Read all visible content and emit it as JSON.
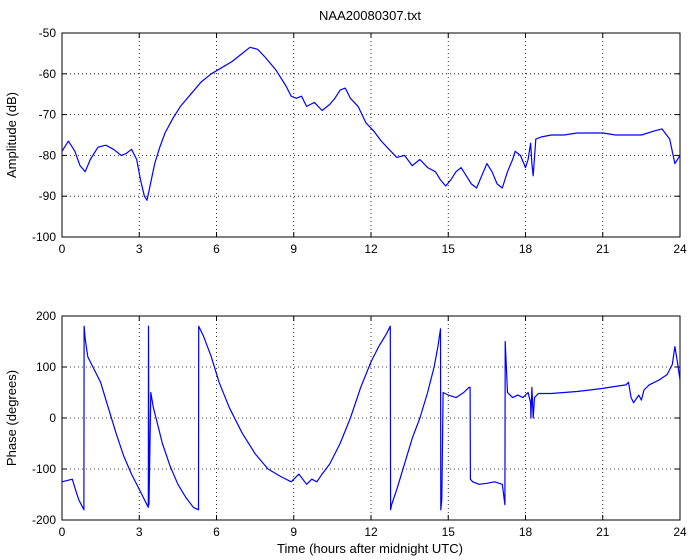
{
  "chart_data": [
    {
      "type": "line",
      "title": "NAA20080307.txt",
      "xlabel": "",
      "ylabel": "Amplitude (dB)",
      "xlim": [
        0,
        24
      ],
      "ylim": [
        -100,
        -50
      ],
      "xticks": [
        0,
        3,
        6,
        9,
        12,
        15,
        18,
        21,
        24
      ],
      "yticks": [
        -100,
        -90,
        -80,
        -70,
        -60,
        -50
      ],
      "grid": true,
      "series": [
        {
          "color": "#0000ff",
          "x": [
            0,
            0.25,
            0.5,
            0.7,
            0.9,
            1.1,
            1.4,
            1.7,
            2.0,
            2.3,
            2.5,
            2.7,
            2.9,
            3.05,
            3.2,
            3.3,
            3.4,
            3.6,
            3.8,
            4.0,
            4.3,
            4.6,
            5.0,
            5.4,
            5.8,
            6.2,
            6.6,
            7.0,
            7.3,
            7.6,
            7.9,
            8.3,
            8.7,
            8.9,
            9.1,
            9.3,
            9.5,
            9.8,
            10.1,
            10.4,
            10.6,
            10.8,
            11.0,
            11.2,
            11.5,
            11.8,
            12.1,
            12.4,
            12.7,
            13.0,
            13.3,
            13.6,
            13.9,
            14.2,
            14.5,
            14.7,
            14.9,
            15.1,
            15.3,
            15.5,
            15.7,
            15.9,
            16.1,
            16.3,
            16.5,
            16.7,
            16.9,
            17.1,
            17.3,
            17.5,
            17.6,
            17.7,
            17.8,
            18.0,
            18.1,
            18.2,
            18.25,
            18.3,
            18.4,
            18.6,
            19.0,
            19.5,
            20.0,
            20.5,
            21.0,
            21.5,
            22.0,
            22.5,
            23.0,
            23.3,
            23.6,
            23.8,
            24.0
          ],
          "y": [
            -79,
            -76.5,
            -79,
            -82.5,
            -84,
            -81,
            -78,
            -77.5,
            -78.5,
            -80,
            -79.5,
            -78.5,
            -81,
            -86,
            -90,
            -91,
            -88,
            -82,
            -78,
            -74.5,
            -71,
            -68,
            -65,
            -62,
            -60,
            -58.5,
            -57,
            -55,
            -53.5,
            -54,
            -56,
            -59,
            -63,
            -65.5,
            -66,
            -65.5,
            -68,
            -67,
            -69,
            -67.5,
            -66,
            -64,
            -63.5,
            -66,
            -68,
            -72,
            -74,
            -76.5,
            -78.5,
            -80.5,
            -80,
            -82.5,
            -81,
            -83,
            -84,
            -86,
            -87.5,
            -86,
            -84,
            -83,
            -85,
            -87,
            -88,
            -85,
            -82,
            -84,
            -87,
            -88,
            -84,
            -81,
            -79,
            -79.5,
            -80,
            -83,
            -81,
            -77,
            -82,
            -85,
            -76,
            -75.5,
            -75,
            -75,
            -74.5,
            -74.5,
            -74.5,
            -75,
            -75,
            -75,
            -74,
            -73.5,
            -76,
            -82,
            -80
          ]
        }
      ]
    },
    {
      "type": "line",
      "title": "",
      "xlabel": "Time (hours after midnight UTC)",
      "ylabel": "Phase (degrees)",
      "xlim": [
        0,
        24
      ],
      "ylim": [
        -200,
        200
      ],
      "xticks": [
        0,
        3,
        6,
        9,
        12,
        15,
        18,
        21,
        24
      ],
      "yticks": [
        -200,
        -100,
        0,
        100,
        200
      ],
      "grid": true,
      "series": [
        {
          "color": "#0000ff",
          "x": [
            0,
            0.4,
            0.55,
            0.65,
            0.75,
            0.85,
            0.86,
            0.9,
            1.0,
            1.2,
            1.5,
            1.8,
            2.1,
            2.4,
            2.7,
            3.0,
            3.2,
            3.35,
            3.36,
            3.38,
            3.45,
            3.55,
            3.7,
            3.9,
            4.2,
            4.5,
            4.8,
            5.1,
            5.3,
            5.31,
            5.5,
            5.8,
            6.1,
            6.5,
            7.0,
            7.5,
            8.0,
            8.5,
            8.9,
            9.2,
            9.5,
            9.7,
            9.9,
            10.1,
            10.4,
            10.8,
            11.2,
            11.6,
            12.0,
            12.3,
            12.6,
            12.75,
            12.76,
            12.8,
            13.0,
            13.3,
            13.6,
            13.9,
            14.2,
            14.45,
            14.6,
            14.7,
            14.71,
            14.75,
            14.8,
            15.0,
            15.3,
            15.6,
            15.8,
            15.85,
            15.86,
            15.95,
            16.2,
            16.5,
            16.8,
            17.1,
            17.2,
            17.21,
            17.3,
            17.5,
            17.7,
            17.9,
            18.1,
            18.2,
            18.21,
            18.25,
            18.3,
            18.35,
            18.5,
            19.0,
            19.5,
            20.0,
            20.5,
            21.0,
            21.5,
            21.9,
            22.0,
            22.1,
            22.2,
            22.4,
            22.5,
            22.6,
            22.8,
            23.2,
            23.5,
            23.7,
            23.8,
            23.9,
            24.0
          ],
          "y": [
            -125,
            -120,
            -145,
            -160,
            -170,
            -180,
            180,
            155,
            120,
            100,
            70,
            20,
            -30,
            -75,
            -110,
            -140,
            -160,
            -175,
            180,
            -170,
            50,
            20,
            -10,
            -50,
            -95,
            -130,
            -155,
            -175,
            -180,
            180,
            160,
            120,
            70,
            20,
            -30,
            -70,
            -100,
            -115,
            -125,
            -110,
            -130,
            -120,
            -125,
            -110,
            -90,
            -50,
            0,
            60,
            110,
            140,
            165,
            180,
            -180,
            -170,
            -140,
            -90,
            -40,
            0,
            50,
            100,
            140,
            175,
            -180,
            -160,
            50,
            45,
            40,
            50,
            60,
            60,
            -120,
            -125,
            -130,
            -128,
            -125,
            -130,
            -170,
            150,
            50,
            40,
            45,
            40,
            50,
            30,
            0,
            60,
            0,
            40,
            48,
            48,
            50,
            52,
            55,
            58,
            62,
            65,
            70,
            40,
            30,
            45,
            35,
            55,
            65,
            75,
            85,
            105,
            140,
            110,
            75
          ]
        }
      ]
    }
  ]
}
